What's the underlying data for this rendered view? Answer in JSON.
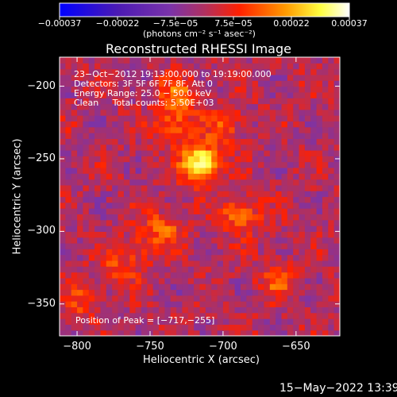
{
  "chart_data": {
    "type": "heatmap",
    "title": "Reconstructed RHESSI Image",
    "xlabel": "Heliocentric X (arcsec)",
    "ylabel": "Heliocentric Y (arcsec)",
    "xlim": [
      -812,
      -620
    ],
    "ylim": [
      -372,
      -180
    ],
    "xticks": [
      -800,
      -750,
      -700,
      -650
    ],
    "yticks": [
      -200,
      -250,
      -300,
      -350
    ],
    "xtick_labels": [
      "−800",
      "−750",
      "−700",
      "−650"
    ],
    "ytick_labels": [
      "−200",
      "−250",
      "−300",
      "−350"
    ],
    "colorbar": {
      "range": [
        -0.00037,
        0.00037
      ],
      "tick_labels": [
        "−0.00037",
        "−0.00022",
        "−7.5e−05",
        "7.5e−05",
        "0.00022",
        "0.00037"
      ],
      "unit_label": "(photons cm⁻² s⁻¹ asec⁻²)",
      "colors": [
        "#0000ff",
        "#4b1ab3",
        "#7a33aa",
        "#b03060",
        "#ff2000",
        "#ff9a00",
        "#ffff40",
        "#ffffff"
      ]
    },
    "annotations": [
      "23−Oct−2012 19:13:00.000 to 19:19:00.000",
      "Detectors: 3F 5F 6F 7F 8F, Att 0",
      "Energy Range: 25.0 − 50.0 keV",
      "Clean     Total counts: 5.50E+03"
    ],
    "peak_label": "Position of Peak = [−717,−255]",
    "peak": [
      -717,
      -255
    ],
    "sources": [
      {
        "x": -717,
        "y": -255,
        "value": 0.00037
      },
      {
        "x": -735,
        "y": -228,
        "value": 0.00016
      },
      {
        "x": -733,
        "y": -207,
        "value": 0.00014
      },
      {
        "x": -690,
        "y": -290,
        "value": 0.00018
      },
      {
        "x": -743,
        "y": -300,
        "value": 0.00015
      },
      {
        "x": -700,
        "y": -228,
        "value": 0.00012
      },
      {
        "x": -665,
        "y": -335,
        "value": 0.00012
      },
      {
        "x": -775,
        "y": -330,
        "value": 0.0001
      },
      {
        "x": -760,
        "y": -315,
        "value": 9e-05
      },
      {
        "x": -800,
        "y": -350,
        "value": 0.0001
      }
    ]
  },
  "footer": {
    "timestamp": "15−May−2022 13:39"
  }
}
